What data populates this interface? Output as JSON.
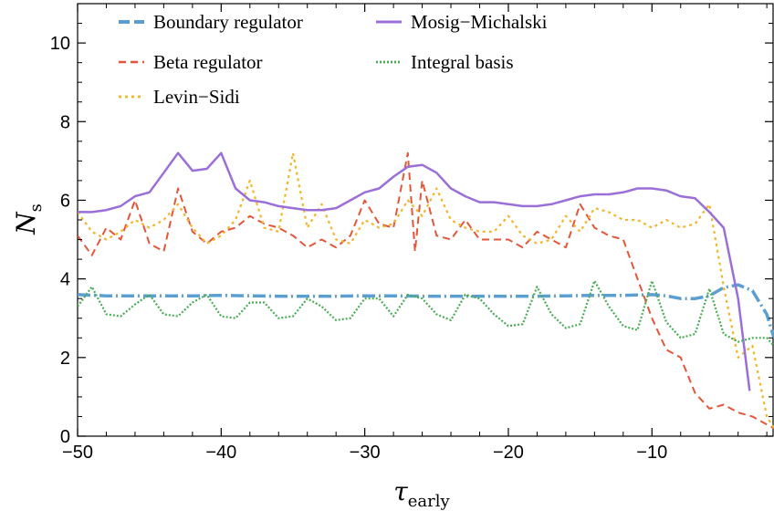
{
  "chart_data": {
    "type": "line",
    "title": "",
    "xlabel": {
      "main": "τ",
      "sub": "early"
    },
    "ylabel": {
      "main": "N",
      "sub": "s"
    },
    "xlim": [
      -50,
      -1.5
    ],
    "ylim": [
      0,
      11
    ],
    "xticks": [
      -50,
      -40,
      -30,
      -20,
      -10
    ],
    "xtick_labels": [
      "−50",
      "−40",
      "−30",
      "−20",
      "−10"
    ],
    "yticks": [
      0,
      2,
      4,
      6,
      8,
      10
    ],
    "ytick_labels": [
      "0",
      "2",
      "4",
      "6",
      "8",
      "10"
    ],
    "grid": false,
    "legend_position": "top",
    "series": [
      {
        "name": "Boundary regulator",
        "color": "#5b9fd1",
        "dash": "14,4,2,4",
        "width": 3.5,
        "x": [
          -50,
          -48,
          -46,
          -44,
          -42,
          -40,
          -38,
          -36,
          -34,
          -32,
          -30,
          -28,
          -26,
          -24,
          -22,
          -20,
          -18,
          -16,
          -14,
          -12,
          -10,
          -9,
          -8,
          -7,
          -6,
          -5,
          -4,
          -3,
          -2,
          -1.5
        ],
        "y": [
          3.6,
          3.57,
          3.57,
          3.57,
          3.57,
          3.58,
          3.57,
          3.56,
          3.56,
          3.56,
          3.57,
          3.57,
          3.56,
          3.56,
          3.56,
          3.56,
          3.56,
          3.57,
          3.58,
          3.58,
          3.6,
          3.57,
          3.5,
          3.5,
          3.57,
          3.78,
          3.85,
          3.7,
          3.1,
          2.5
        ]
      },
      {
        "name": "Beta regulator",
        "color": "#e4563a",
        "dash": "8,5",
        "width": 2,
        "x": [
          -50,
          -49,
          -48,
          -47,
          -46,
          -45,
          -44,
          -43,
          -42,
          -41,
          -40,
          -39,
          -38,
          -37,
          -36,
          -35,
          -34,
          -33,
          -32,
          -31,
          -30,
          -29,
          -28,
          -27,
          -26.5,
          -26,
          -25,
          -24,
          -23,
          -22,
          -21,
          -20,
          -19,
          -18,
          -17,
          -16,
          -15,
          -14,
          -13,
          -12,
          -11,
          -10,
          -9,
          -8,
          -7,
          -6,
          -5,
          -4,
          -3,
          -2,
          -1.5
        ],
        "y": [
          5.1,
          4.6,
          5.3,
          5.0,
          6.0,
          4.9,
          4.7,
          6.3,
          5.2,
          4.9,
          5.2,
          5.3,
          5.6,
          5.4,
          5.3,
          5.1,
          4.8,
          5.0,
          4.8,
          5.1,
          6.0,
          5.4,
          5.3,
          7.2,
          4.7,
          6.5,
          5.1,
          5.0,
          5.5,
          5.0,
          5.0,
          5.0,
          4.8,
          5.2,
          5.0,
          4.8,
          5.9,
          5.3,
          5.1,
          5.0,
          4.0,
          3.0,
          2.2,
          2.0,
          1.1,
          0.7,
          0.8,
          0.6,
          0.5,
          0.3,
          0.2
        ]
      },
      {
        "name": "Levin−Sidi",
        "color": "#f2b52b",
        "dash": "3,4",
        "width": 2.2,
        "x": [
          -50,
          -49,
          -48,
          -47,
          -46,
          -45,
          -44,
          -43,
          -42,
          -41,
          -40,
          -39,
          -38,
          -37,
          -36,
          -35,
          -34,
          -33,
          -32,
          -31,
          -30,
          -29,
          -28,
          -27,
          -26,
          -25,
          -24,
          -23,
          -22,
          -21,
          -20,
          -19,
          -18,
          -17,
          -16,
          -15,
          -14,
          -13,
          -12,
          -11,
          -10,
          -9,
          -8,
          -7,
          -6,
          -5,
          -4,
          -3,
          -2,
          -1.5
        ],
        "y": [
          5.7,
          5.2,
          5.0,
          5.2,
          5.5,
          5.3,
          5.5,
          5.9,
          5.3,
          4.9,
          5.1,
          5.5,
          6.5,
          5.3,
          5.2,
          7.2,
          5.3,
          5.9,
          5.0,
          4.9,
          5.5,
          5.3,
          5.4,
          6.0,
          5.6,
          6.3,
          5.5,
          5.3,
          5.2,
          5.2,
          5.6,
          5.1,
          4.9,
          5.0,
          5.6,
          5.2,
          5.8,
          5.7,
          5.5,
          5.5,
          5.3,
          5.5,
          5.3,
          5.4,
          5.9,
          3.8,
          2.0,
          2.3,
          0.5,
          0.2
        ]
      },
      {
        "name": "Mosig−Michalski",
        "color": "#9b6fd8",
        "dash": "",
        "width": 2.5,
        "x": [
          -50,
          -49,
          -48,
          -47,
          -46,
          -45,
          -44,
          -43,
          -42,
          -41,
          -40,
          -39,
          -38,
          -37,
          -36,
          -35,
          -34,
          -33,
          -32,
          -31,
          -30,
          -29,
          -28,
          -27,
          -26,
          -25,
          -24,
          -23,
          -22,
          -21,
          -20,
          -19,
          -18,
          -17,
          -16,
          -15,
          -14,
          -13,
          -12,
          -11,
          -10,
          -9,
          -8,
          -7,
          -6,
          -5,
          -4,
          -3.2
        ],
        "y": [
          5.7,
          5.7,
          5.75,
          5.85,
          6.1,
          6.2,
          6.7,
          7.2,
          6.75,
          6.8,
          7.2,
          6.3,
          6.0,
          5.95,
          5.85,
          5.8,
          5.75,
          5.75,
          5.8,
          6.0,
          6.2,
          6.3,
          6.6,
          6.85,
          6.9,
          6.7,
          6.3,
          6.1,
          5.95,
          5.95,
          5.9,
          5.85,
          5.85,
          5.9,
          6.0,
          6.1,
          6.15,
          6.15,
          6.2,
          6.3,
          6.3,
          6.25,
          6.1,
          6.05,
          5.7,
          5.3,
          3.5,
          1.15
        ]
      },
      {
        "name": "Integral basis",
        "color": "#4aad55",
        "dash": "2,2",
        "width": 2.2,
        "x": [
          -50,
          -49,
          -48,
          -47,
          -46,
          -45,
          -44,
          -43,
          -42,
          -41,
          -40,
          -39,
          -38,
          -37,
          -36,
          -35,
          -34,
          -33,
          -32,
          -31,
          -30,
          -29,
          -28,
          -27,
          -26,
          -25,
          -24,
          -23,
          -22,
          -21,
          -20,
          -19,
          -18,
          -17,
          -16,
          -15,
          -14,
          -13,
          -12,
          -11,
          -10,
          -9,
          -8,
          -7,
          -6,
          -5,
          -4,
          -3,
          -2,
          -1.5
        ],
        "y": [
          3.3,
          3.8,
          3.1,
          3.05,
          3.35,
          3.6,
          3.1,
          3.05,
          3.4,
          3.6,
          3.05,
          3.0,
          3.4,
          3.4,
          3.0,
          3.05,
          3.5,
          3.3,
          2.95,
          3.0,
          3.5,
          3.5,
          3.05,
          3.6,
          3.5,
          3.1,
          2.95,
          3.6,
          3.5,
          3.1,
          2.8,
          2.85,
          3.8,
          3.1,
          2.75,
          2.85,
          3.95,
          3.3,
          2.8,
          2.7,
          3.95,
          2.9,
          2.5,
          2.6,
          3.75,
          2.6,
          2.4,
          2.5,
          2.5,
          2.3
        ]
      }
    ]
  }
}
